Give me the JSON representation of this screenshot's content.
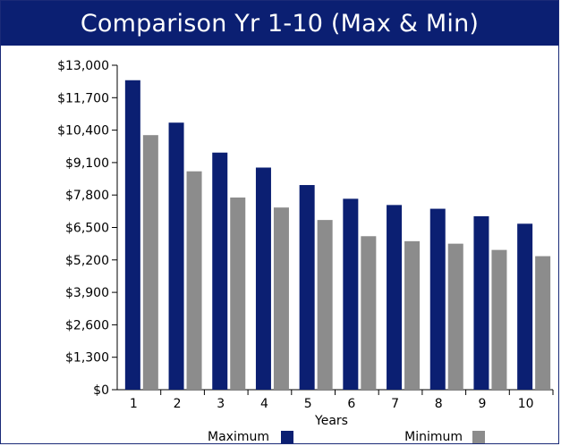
{
  "chart_data": {
    "type": "bar",
    "title": "Comparison Yr 1-10 (Max & Min)",
    "xlabel": "Years",
    "ylabel": "",
    "categories": [
      "1",
      "2",
      "3",
      "4",
      "5",
      "6",
      "7",
      "8",
      "9",
      "10"
    ],
    "series": [
      {
        "name": "Maximum",
        "color": "#0b1f72",
        "values": [
          12400,
          10700,
          9500,
          8900,
          8200,
          7650,
          7400,
          7250,
          6950,
          6650
        ]
      },
      {
        "name": "Minimum",
        "color": "#8c8c8c",
        "values": [
          10200,
          8750,
          7700,
          7300,
          6800,
          6150,
          5950,
          5850,
          5600,
          5350
        ]
      }
    ],
    "ylim": [
      0,
      13000
    ],
    "yticks": [
      "$0",
      "$1,300",
      "$2,600",
      "$3,900",
      "$5,200",
      "$6,500",
      "$7,800",
      "$9,100",
      "$10,400",
      "$11,700",
      "$13,000"
    ],
    "grid": false,
    "legend_position": "bottom"
  }
}
